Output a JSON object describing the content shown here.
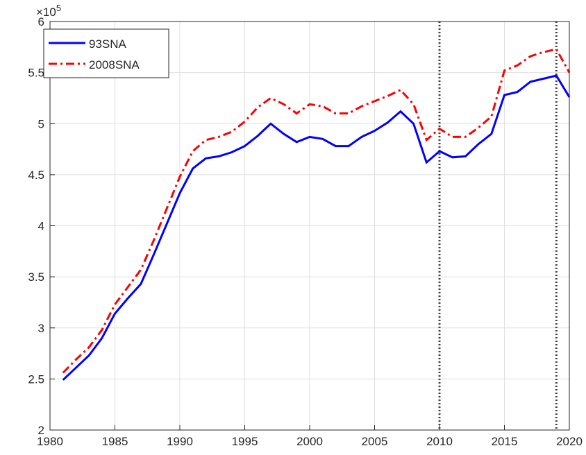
{
  "chart_data": {
    "type": "line",
    "y_multiplier": {
      "base": "×10",
      "exponent": "5"
    },
    "x": [
      1981,
      1982,
      1983,
      1984,
      1985,
      1986,
      1987,
      1988,
      1989,
      1990,
      1991,
      1992,
      1993,
      1994,
      1995,
      1996,
      1997,
      1998,
      1999,
      2000,
      2001,
      2002,
      2003,
      2004,
      2005,
      2006,
      2007,
      2008,
      2009,
      2010,
      2011,
      2012,
      2013,
      2014,
      2015,
      2016,
      2017,
      2018,
      2019,
      2020
    ],
    "series": [
      {
        "name": "93SNA",
        "color": "#0000ff",
        "dash": "solid",
        "values": [
          2.49,
          2.61,
          2.73,
          2.9,
          3.14,
          3.29,
          3.43,
          3.72,
          4.02,
          4.32,
          4.56,
          4.66,
          4.68,
          4.72,
          4.78,
          4.88,
          5.0,
          4.9,
          4.82,
          4.87,
          4.85,
          4.78,
          4.78,
          4.87,
          4.93,
          5.01,
          5.12,
          5.0,
          4.62,
          4.73,
          4.67,
          4.68,
          4.8,
          4.9,
          5.28,
          5.31,
          5.41,
          5.44,
          5.47,
          5.26
        ]
      },
      {
        "name": "2008SNA",
        "color": "#ff0000",
        "dash": "dashdot",
        "values": [
          2.56,
          2.69,
          2.81,
          2.98,
          3.23,
          3.4,
          3.57,
          3.86,
          4.17,
          4.48,
          4.73,
          4.84,
          4.87,
          4.92,
          5.02,
          5.16,
          5.25,
          5.19,
          5.1,
          5.19,
          5.17,
          5.1,
          5.1,
          5.17,
          5.22,
          5.27,
          5.33,
          5.19,
          4.84,
          4.95,
          4.87,
          4.87,
          4.96,
          5.07,
          5.52,
          5.57,
          5.66,
          5.7,
          5.73,
          5.5
        ]
      }
    ],
    "vlines": [
      2010,
      2019
    ],
    "xlim": [
      1980,
      2020
    ],
    "xticks": [
      1980,
      1985,
      1990,
      1995,
      2000,
      2005,
      2010,
      2015,
      2020
    ],
    "ylim": [
      2,
      6
    ],
    "yticks": [
      2,
      2.5,
      3,
      3.5,
      4,
      4.5,
      5,
      5.5,
      6
    ],
    "grid": true,
    "legend": "top-left"
  }
}
